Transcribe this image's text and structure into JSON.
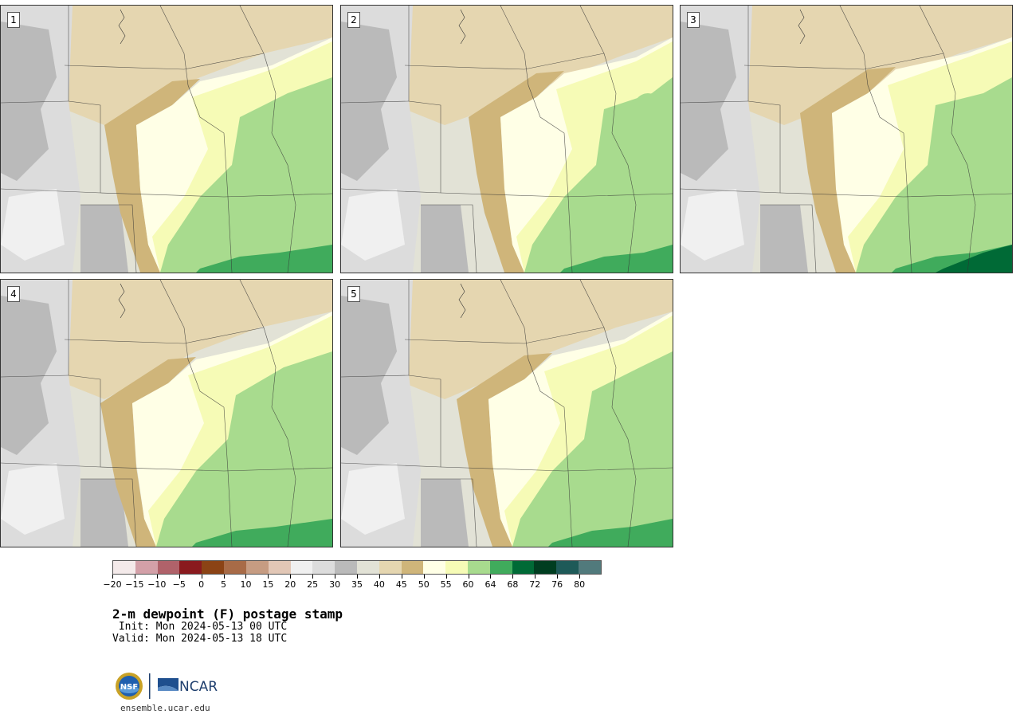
{
  "panels": [
    {
      "label": "1"
    },
    {
      "label": "2"
    },
    {
      "label": "3"
    },
    {
      "label": "4"
    },
    {
      "label": "5"
    }
  ],
  "colorbar": {
    "colors": [
      "#f4eaea",
      "#d3a0a8",
      "#b0626a",
      "#8a1a1e",
      "#8b4315",
      "#a86b47",
      "#c69c82",
      "#e2c7b6",
      "#f0f0f0",
      "#dcdcdc",
      "#bababa",
      "#e2e2d6",
      "#e5d6b0",
      "#cfb57a",
      "#ffffe6",
      "#f6fbb6",
      "#a8db8e",
      "#40ab5c",
      "#006a36",
      "#003d20",
      "#1e5a58",
      "#517a7c"
    ],
    "ticks": [
      "−20",
      "−15",
      "−10",
      "−5",
      "0",
      "5",
      "10",
      "15",
      "20",
      "25",
      "30",
      "35",
      "40",
      "45",
      "50",
      "55",
      "60",
      "64",
      "68",
      "72",
      "76",
      "80"
    ]
  },
  "title": "2-m dewpoint (F) postage stamp",
  "init": " Init: Mon 2024-05-13 00 UTC",
  "valid": "Valid: Mon 2024-05-13 18 UTC",
  "logo": {
    "nsf": "NSF",
    "ncar": "NCAR"
  },
  "site": "ensemble.ucar.edu"
}
